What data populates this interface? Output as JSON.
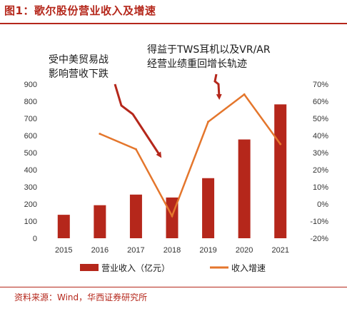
{
  "figure": {
    "title": "图1：歌尔股份营业收入及增速",
    "source": "资料来源：Wind，华西证券研究所"
  },
  "chart_data": {
    "type": "bar",
    "categories": [
      "2015",
      "2016",
      "2017",
      "2018",
      "2019",
      "2020",
      "2021"
    ],
    "series": [
      {
        "name": "营业收入（亿元）",
        "type": "bar",
        "axis": "left",
        "color": "#b5271b",
        "values": [
          137,
          193,
          255,
          238,
          351,
          577,
          782
        ]
      },
      {
        "name": "收入增速",
        "type": "line",
        "axis": "right",
        "color": "#e4762c",
        "values": [
          null,
          41,
          32,
          -7,
          48,
          64,
          35
        ]
      }
    ],
    "y_left": {
      "ylim": [
        0,
        900
      ],
      "ticks": [
        "0",
        "100",
        "200",
        "300",
        "400",
        "500",
        "600",
        "700",
        "800",
        "900"
      ]
    },
    "y_right": {
      "ylim": [
        -20,
        70
      ],
      "ticks": [
        "-20%",
        "-10%",
        "0%",
        "10%",
        "20%",
        "30%",
        "40%",
        "50%",
        "60%",
        "70%"
      ]
    },
    "legend": {
      "placement": "bottom"
    },
    "grid": false,
    "annotations": [
      {
        "lines": [
          "受中美贸易战",
          "影响营收下跌"
        ],
        "points_to": "2018"
      },
      {
        "lines": [
          "得益于TWS耳机以及VR/AR",
          "经营业绩重回增长轨迹"
        ],
        "points_to": "2019"
      }
    ]
  }
}
